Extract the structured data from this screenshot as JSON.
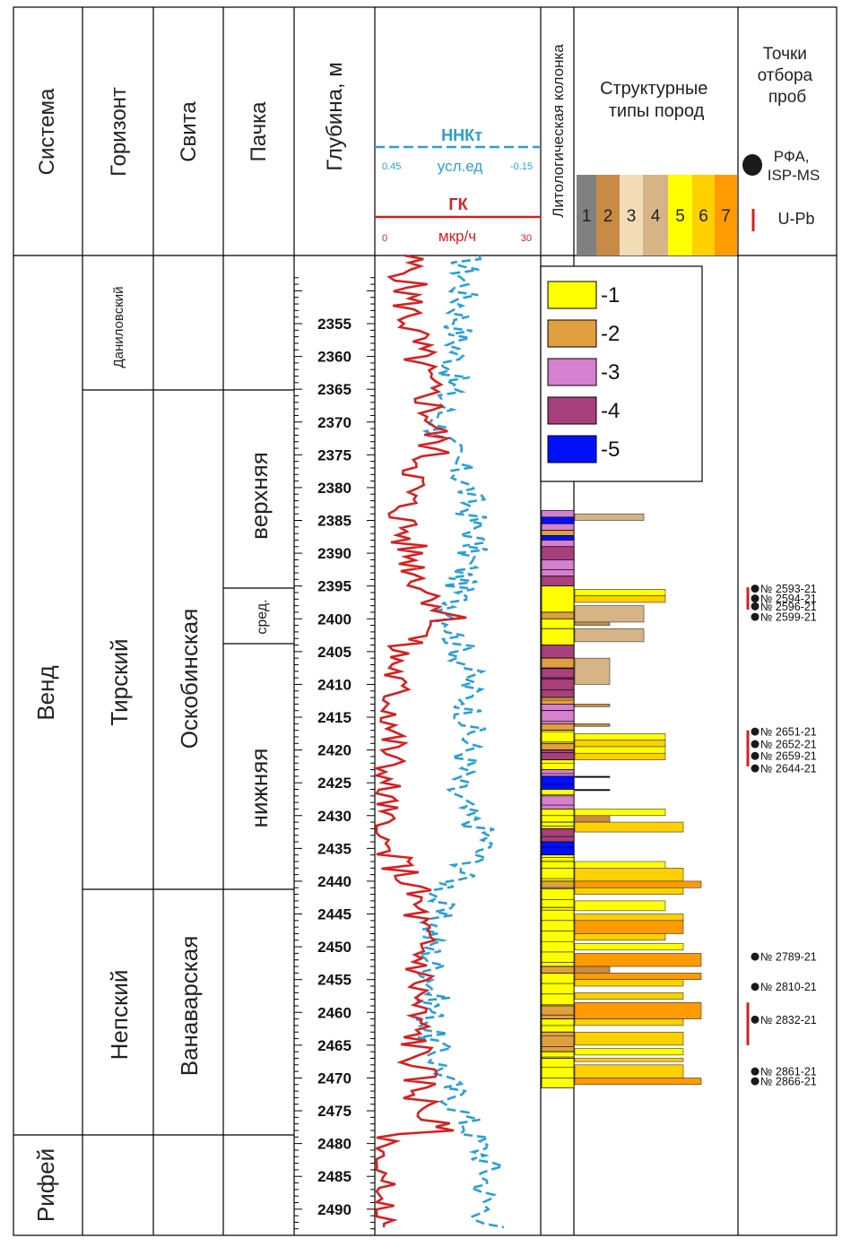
{
  "headers": {
    "sistema": "Система",
    "gorizont": "Горизонт",
    "svita": "Свита",
    "pachka": "Пачка",
    "glubina": "Глубина, м",
    "lith_column": "Литологическая колонка",
    "struct_types": "Структурные типы пород",
    "sample_points": "Точки отбора проб"
  },
  "log_header": {
    "nnkt_label": "ННКт",
    "nnkt_unit": "усл.ед",
    "nnkt_left": "0.45",
    "nnkt_right": "-0.15",
    "gk_label": "ГК",
    "gk_unit": "мкр/ч",
    "gk_left": "0",
    "gk_right": "30"
  },
  "colors": {
    "gk": "#d42020",
    "nnkt": "#2a9fd6"
  },
  "struct_scale": [
    {
      "num": "1",
      "color": "#808080"
    },
    {
      "num": "2",
      "color": "#c98a45"
    },
    {
      "num": "3",
      "color": "#f2dcb6"
    },
    {
      "num": "4",
      "color": "#d6b485"
    },
    {
      "num": "5",
      "color": "#ffff00"
    },
    {
      "num": "6",
      "color": "#ffd000"
    },
    {
      "num": "7",
      "color": "#ff9a00"
    }
  ],
  "sample_legend": {
    "dot_label": "РФА, ISP-MS",
    "bar_label": "U-Pb"
  },
  "units": {
    "sistema": [
      "Венд",
      "Рифей"
    ],
    "gorizont": [
      "Даниловский",
      "Тирский",
      "Непский"
    ],
    "svita": [
      "Оскобинская",
      "Ванаварская"
    ],
    "pachka": [
      "верхняя",
      "сред.",
      "нижняя"
    ]
  },
  "depth_ticks": [
    "2355",
    "2360",
    "2365",
    "2370",
    "2375",
    "2380",
    "2385",
    "2390",
    "2395",
    "2400",
    "2405",
    "2410",
    "2415",
    "2420",
    "2425",
    "2430",
    "2435",
    "2440",
    "2445",
    "2450",
    "2455",
    "2460",
    "2465",
    "2470",
    "2475",
    "2480",
    "2485",
    "2490"
  ],
  "lith_legend": [
    {
      "label": "-1",
      "color": "#ffff00"
    },
    {
      "label": "-2",
      "color": "#e0a040"
    },
    {
      "label": "-3",
      "color": "#d680d0"
    },
    {
      "label": "-4",
      "color": "#a8407c"
    },
    {
      "label": "-5",
      "color": "#0010ff"
    }
  ],
  "samples": [
    {
      "label": "№ 2593-21",
      "depth": 2395.4
    },
    {
      "label": "№ 2594-21",
      "depth": 2396.9
    },
    {
      "label": "№ 2596-21",
      "depth": 2398.1
    },
    {
      "label": "№ 2599-21",
      "depth": 2399.7
    },
    {
      "label": "№ 2651-21",
      "depth": 2417.2
    },
    {
      "label": "№ 2652-21",
      "depth": 2419.1
    },
    {
      "label": "№ 2659-21",
      "depth": 2420.9
    },
    {
      "label": "№ 2644-21",
      "depth": 2422.8
    },
    {
      "label": "№ 2789-21",
      "depth": 2451.5
    },
    {
      "label": "№ 2810-21",
      "depth": 2456.1
    },
    {
      "label": "№ 2832-21",
      "depth": 2461.1
    },
    {
      "label": "№ 2861-21",
      "depth": 2469.0
    },
    {
      "label": "№ 2866-21",
      "depth": 2470.5
    }
  ]
}
